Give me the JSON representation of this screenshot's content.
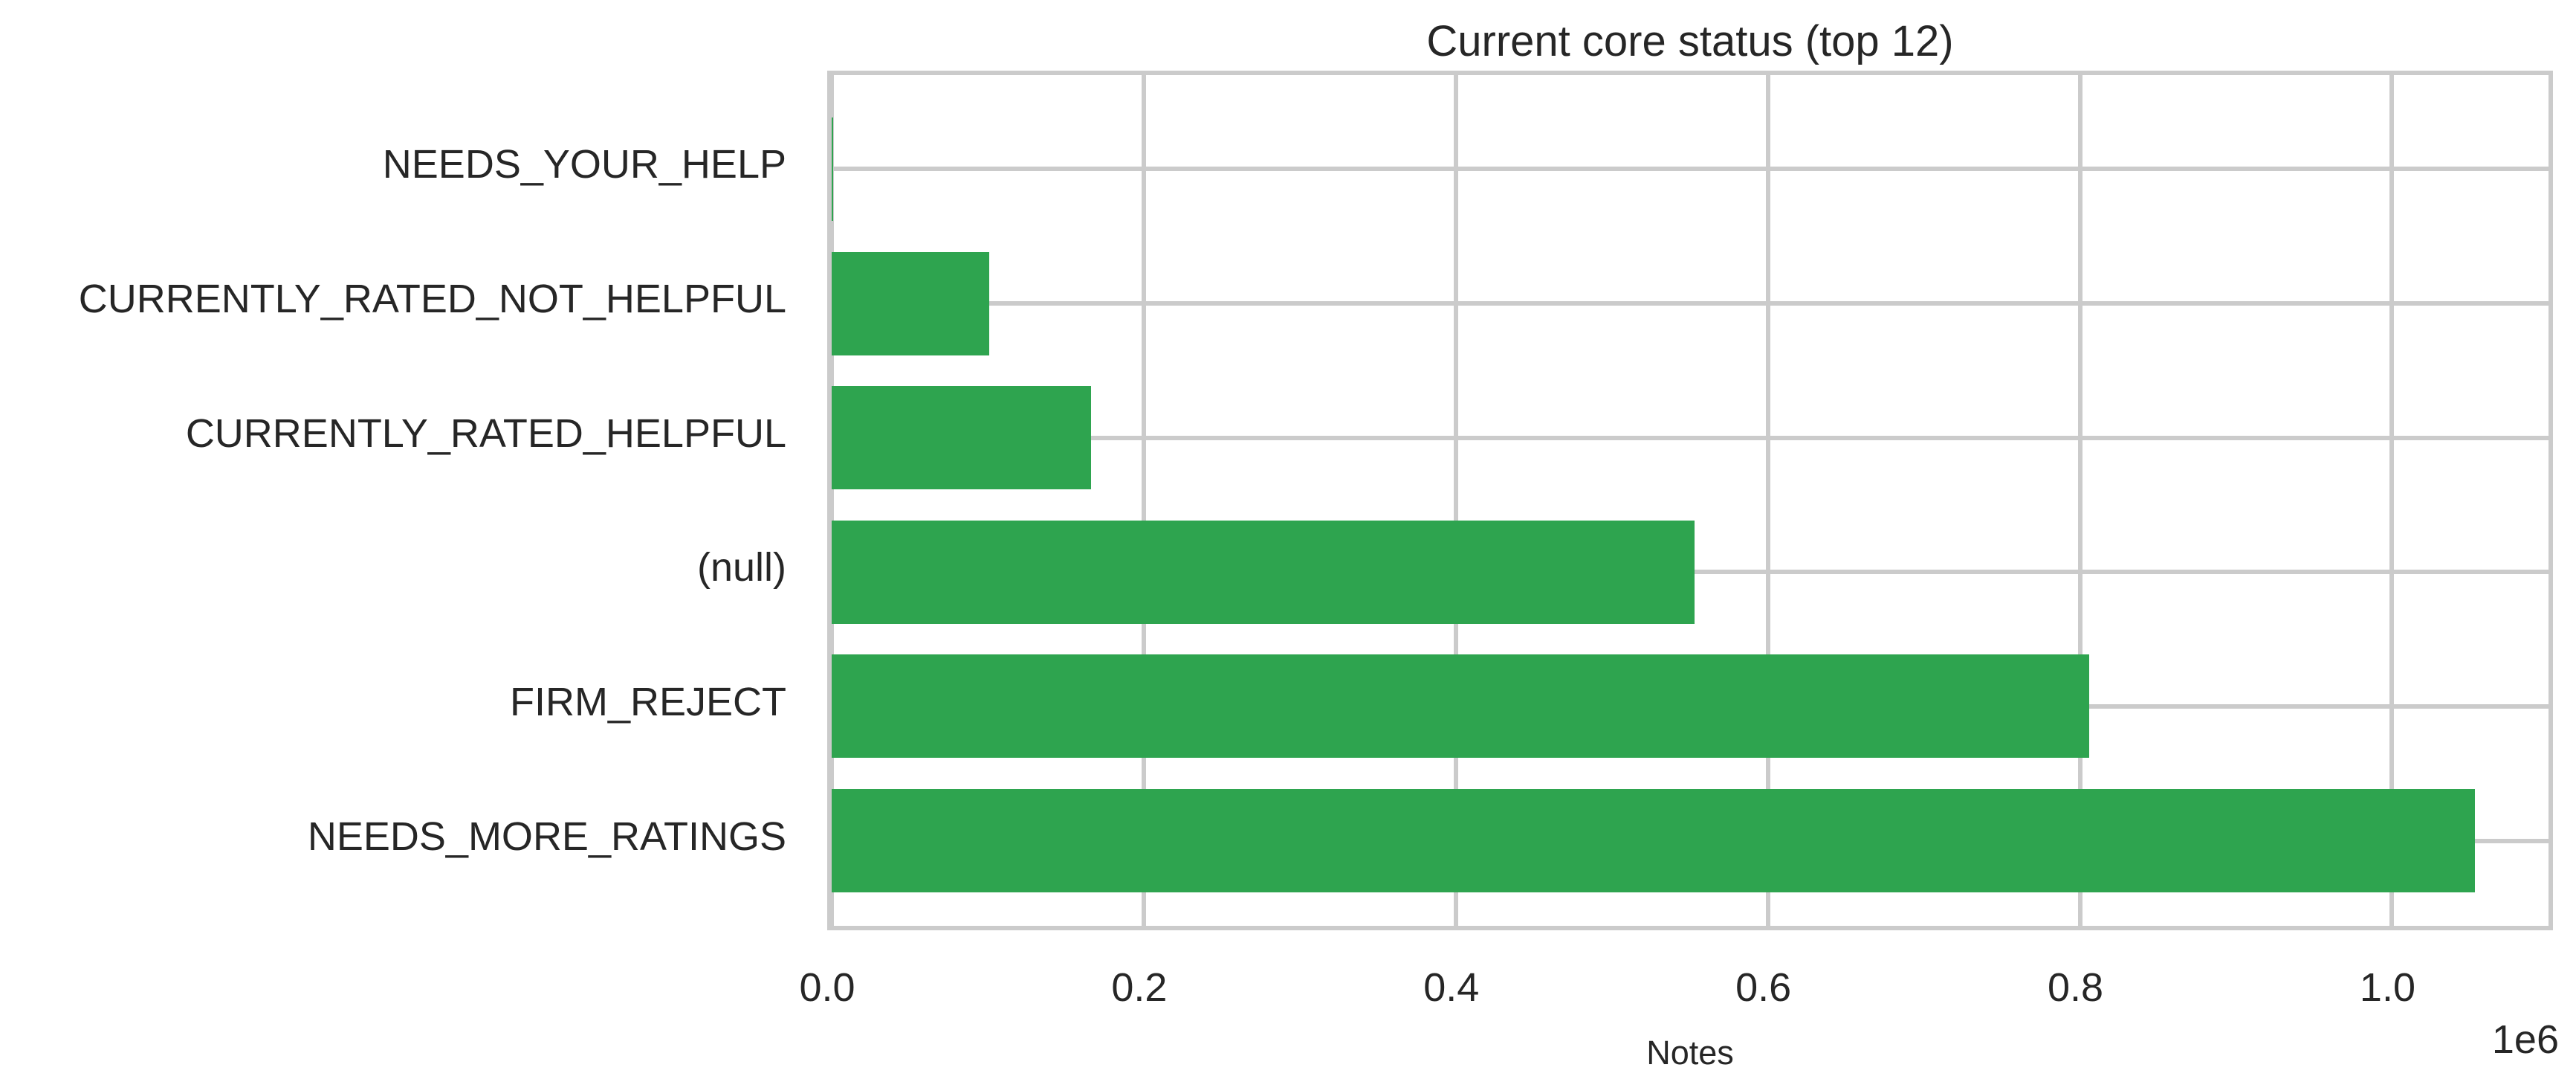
{
  "chart_data": {
    "type": "bar",
    "orientation": "horizontal",
    "title": "Current core status (top 12)",
    "categories": [
      "NEEDS_YOUR_HELP",
      "CURRENTLY_RATED_NOT_HELPFUL",
      "CURRENTLY_RATED_HELPFUL",
      "(null)",
      "FIRM_REJECT",
      "NEEDS_MORE_RATINGS"
    ],
    "values": [
      1000,
      101000,
      166000,
      553000,
      806000,
      1053000
    ],
    "xlabel": "Notes",
    "ylabel": "",
    "x_tick_values": [
      0,
      200000,
      400000,
      600000,
      800000,
      1000000
    ],
    "x_tick_labels": [
      "0.0",
      "0.2",
      "0.4",
      "0.6",
      "0.8",
      "1.0"
    ],
    "scale_offset_label": "1e6",
    "xlim": [
      0,
      1106000
    ],
    "grid": true,
    "legend_position": "none",
    "colors": {
      "bar": "#2ea44f",
      "grid": "#cbcbcb",
      "text": "#262626",
      "background": "#ffffff"
    }
  }
}
